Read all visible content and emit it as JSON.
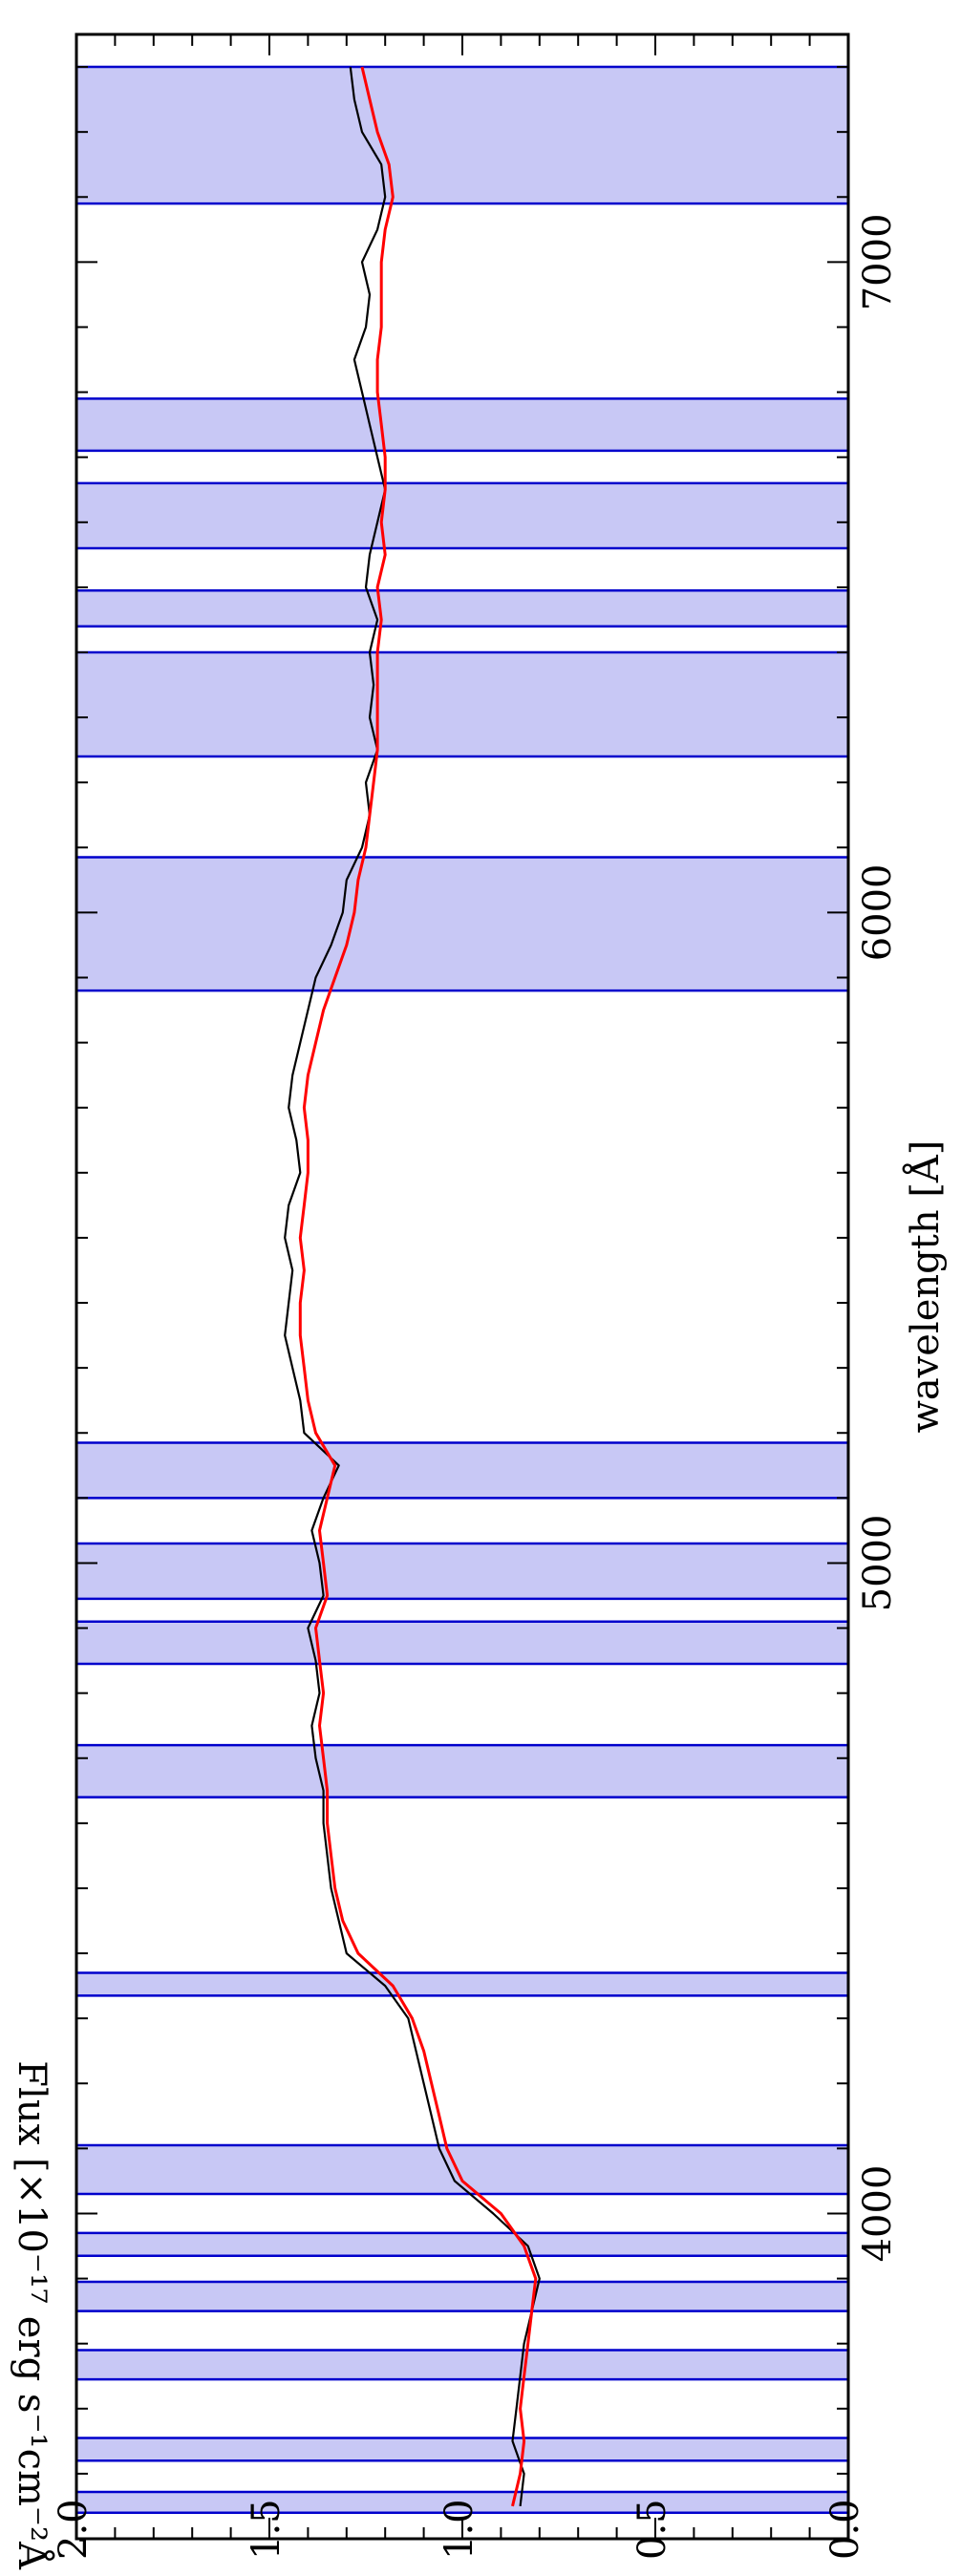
{
  "chart_data": {
    "type": "line",
    "title": "",
    "xlabel": "wavelength [Å]",
    "ylabel": "Flux [×10⁻¹⁷ erg s⁻¹cm⁻²Å⁻¹]",
    "xlim": [
      3500,
      7350
    ],
    "ylim": [
      0.0,
      2.0
    ],
    "grid": false,
    "legend": "none",
    "x_ticks": [
      4000,
      5000,
      6000,
      7000
    ],
    "y_ticks": [
      0.0,
      0.5,
      1.0,
      1.5,
      2.0
    ],
    "y_tick_labels": [
      "0.0",
      "0.5",
      "1.0",
      "1.5",
      "2.0"
    ],
    "colors": {
      "observed": "#000000",
      "model": "#ff0000",
      "masked_fill": "#c8c8f5",
      "masked_edge": "#0000cc"
    },
    "masked_regions": [
      [
        3540,
        3572
      ],
      [
        3620,
        3655
      ],
      [
        3745,
        3790
      ],
      [
        3850,
        3895
      ],
      [
        3935,
        3970
      ],
      [
        4030,
        4105
      ],
      [
        4335,
        4370
      ],
      [
        4640,
        4720
      ],
      [
        4845,
        4910
      ],
      [
        4945,
        5030
      ],
      [
        5100,
        5185
      ],
      [
        5880,
        6085
      ],
      [
        6240,
        6400
      ],
      [
        6440,
        6495
      ],
      [
        6560,
        6660
      ],
      [
        6710,
        6790
      ],
      [
        7090,
        7300
      ]
    ],
    "series": [
      {
        "x": [
          3550,
          3600,
          3650,
          3700,
          3750,
          3800,
          3850,
          3900,
          3950,
          4000,
          4050,
          4100,
          4150,
          4200,
          4250,
          4300,
          4350,
          4400,
          4450,
          4500,
          4550,
          4600,
          4650,
          4700,
          4750,
          4800,
          4850,
          4900,
          4950,
          5000,
          5050,
          5100,
          5150,
          5200,
          5250,
          5300,
          5350,
          5400,
          5450,
          5500,
          5550,
          5600,
          5650,
          5700,
          5750,
          5800,
          5850,
          5900,
          5950,
          6000,
          6050,
          6100,
          6150,
          6200,
          6250,
          6300,
          6350,
          6400,
          6450,
          6500,
          6550,
          6600,
          6650,
          6700,
          6750,
          6800,
          6850,
          6900,
          6950,
          7000,
          7050,
          7100,
          7150,
          7200,
          7250,
          7300
        ],
        "values": [
          0.85,
          0.84,
          0.87,
          0.86,
          0.85,
          0.84,
          0.82,
          0.8,
          0.83,
          0.92,
          1.02,
          1.06,
          1.08,
          1.1,
          1.12,
          1.14,
          1.2,
          1.3,
          1.32,
          1.34,
          1.35,
          1.36,
          1.36,
          1.38,
          1.39,
          1.37,
          1.38,
          1.4,
          1.36,
          1.37,
          1.39,
          1.36,
          1.32,
          1.41,
          1.42,
          1.44,
          1.46,
          1.45,
          1.44,
          1.46,
          1.45,
          1.42,
          1.43,
          1.45,
          1.44,
          1.42,
          1.4,
          1.38,
          1.34,
          1.31,
          1.3,
          1.26,
          1.24,
          1.25,
          1.22,
          1.24,
          1.23,
          1.24,
          1.22,
          1.25,
          1.24,
          1.22,
          1.2,
          1.22,
          1.24,
          1.26,
          1.28,
          1.25,
          1.24,
          1.26,
          1.22,
          1.2,
          1.21,
          1.26,
          1.28,
          1.29
        ]
      },
      {
        "x": [
          3550,
          3600,
          3650,
          3700,
          3750,
          3800,
          3850,
          3900,
          3950,
          4000,
          4050,
          4100,
          4150,
          4200,
          4250,
          4300,
          4350,
          4400,
          4450,
          4500,
          4550,
          4600,
          4650,
          4700,
          4750,
          4800,
          4850,
          4900,
          4950,
          5000,
          5050,
          5100,
          5150,
          5200,
          5250,
          5300,
          5350,
          5400,
          5450,
          5500,
          5550,
          5600,
          5650,
          5700,
          5750,
          5800,
          5850,
          5900,
          5950,
          6000,
          6050,
          6100,
          6150,
          6200,
          6250,
          6300,
          6350,
          6400,
          6450,
          6500,
          6550,
          6600,
          6650,
          6700,
          6750,
          6800,
          6850,
          6900,
          6950,
          7000,
          7050,
          7100,
          7150,
          7200,
          7250,
          7300
        ],
        "values": [
          0.87,
          0.85,
          0.84,
          0.85,
          0.84,
          0.83,
          0.82,
          0.81,
          0.84,
          0.9,
          1.0,
          1.04,
          1.06,
          1.08,
          1.1,
          1.13,
          1.18,
          1.27,
          1.31,
          1.33,
          1.34,
          1.35,
          1.35,
          1.36,
          1.37,
          1.36,
          1.37,
          1.38,
          1.35,
          1.36,
          1.37,
          1.35,
          1.33,
          1.38,
          1.4,
          1.41,
          1.42,
          1.42,
          1.41,
          1.42,
          1.41,
          1.4,
          1.4,
          1.41,
          1.4,
          1.38,
          1.36,
          1.33,
          1.3,
          1.28,
          1.27,
          1.25,
          1.24,
          1.23,
          1.22,
          1.22,
          1.22,
          1.22,
          1.21,
          1.22,
          1.2,
          1.21,
          1.2,
          1.2,
          1.21,
          1.22,
          1.22,
          1.21,
          1.21,
          1.21,
          1.2,
          1.18,
          1.19,
          1.22,
          1.24,
          1.26
        ]
      }
    ]
  }
}
